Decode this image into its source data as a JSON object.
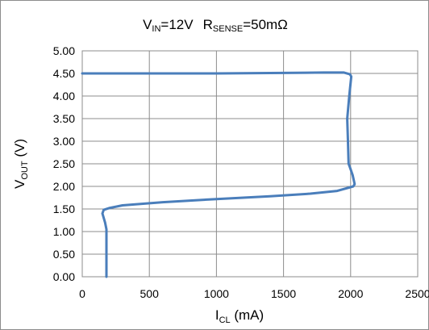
{
  "chart_data": {
    "type": "line",
    "title": {
      "v_main": "V",
      "v_sub": "IN",
      "v_rest": "=12V",
      "r_main": "R",
      "r_sub": "SENSE",
      "r_rest": "=50mΩ"
    },
    "xlabel": {
      "main": "I",
      "sub": "CL",
      "rest": " (mA)"
    },
    "ylabel": {
      "main": "V",
      "sub": "OUT",
      "rest": " (V)"
    },
    "xlim": [
      0,
      2500
    ],
    "ylim": [
      0,
      5
    ],
    "x_ticks": [
      0,
      500,
      1000,
      1500,
      2000,
      2500
    ],
    "x_tick_labels": [
      "0",
      "500",
      "1000",
      "1500",
      "2000",
      "2500"
    ],
    "y_ticks": [
      0,
      0.5,
      1,
      1.5,
      2,
      2.5,
      3,
      3.5,
      4,
      4.5,
      5
    ],
    "y_tick_labels": [
      "0.00",
      "0.50",
      "1.00",
      "1.50",
      "2.00",
      "2.50",
      "3.00",
      "3.50",
      "4.00",
      "4.50",
      "5.00"
    ],
    "grid": true,
    "series_color": "#4a7ebb",
    "series": [
      {
        "x": [
          0,
          500,
          1000,
          1500,
          1800,
          1950,
          1995,
          2005,
          1990,
          1975,
          1980,
          1985,
          1995,
          2015,
          2030,
          2020,
          1900,
          1700,
          1400,
          1000,
          600,
          300,
          200,
          160,
          150,
          170,
          180,
          180,
          180
        ],
        "y": [
          4.5,
          4.5,
          4.5,
          4.51,
          4.52,
          4.52,
          4.48,
          4.43,
          4.0,
          3.5,
          3.0,
          2.5,
          2.42,
          2.25,
          2.05,
          2.0,
          1.9,
          1.84,
          1.78,
          1.72,
          1.65,
          1.58,
          1.52,
          1.48,
          1.4,
          1.2,
          1.05,
          0.5,
          0
        ]
      }
    ]
  }
}
